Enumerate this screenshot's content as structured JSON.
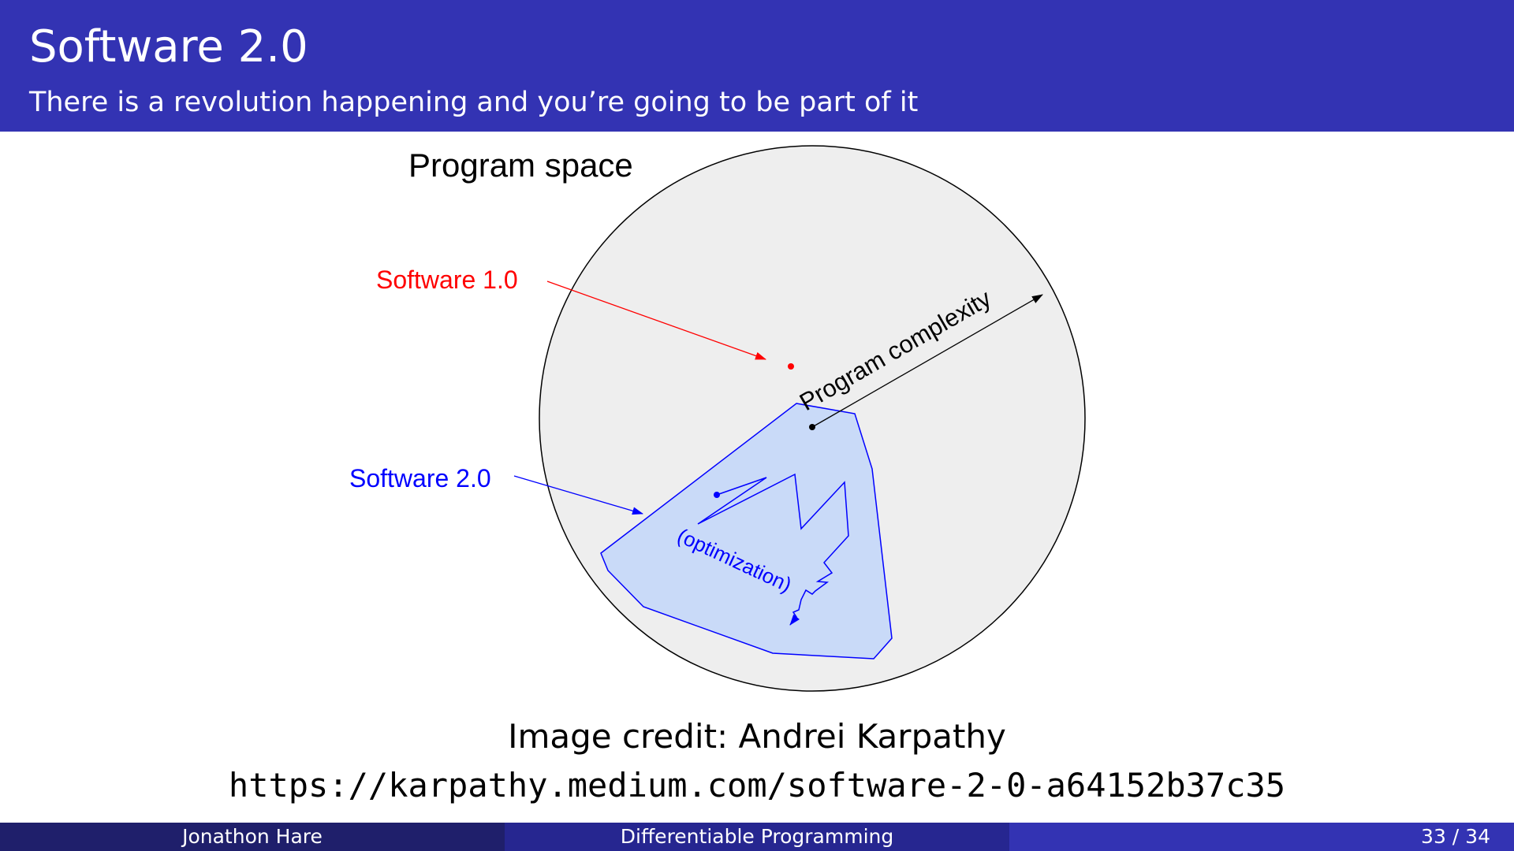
{
  "header": {
    "title": "Software 2.0",
    "subtitle": "There is a revolution happening and you’re going to be part of it"
  },
  "diagram": {
    "title": "Program space",
    "software1_label": "Software 1.0",
    "software2_label": "Software 2.0",
    "complexity_label": "Program complexity",
    "optimization_label": "(optimization)",
    "colors": {
      "space_fill": "#eeeeee",
      "software1": "#ff0000",
      "software2": "#0000ff",
      "software2_fill": "#c9daf8"
    }
  },
  "credit": {
    "line": "Image credit: Andrei Karpathy",
    "url": "https://karpathy.medium.com/software-2-0-a64152b37c35"
  },
  "footer": {
    "author": "Jonathon Hare",
    "course": "Differentiable Programming",
    "page": "33 / 34"
  }
}
